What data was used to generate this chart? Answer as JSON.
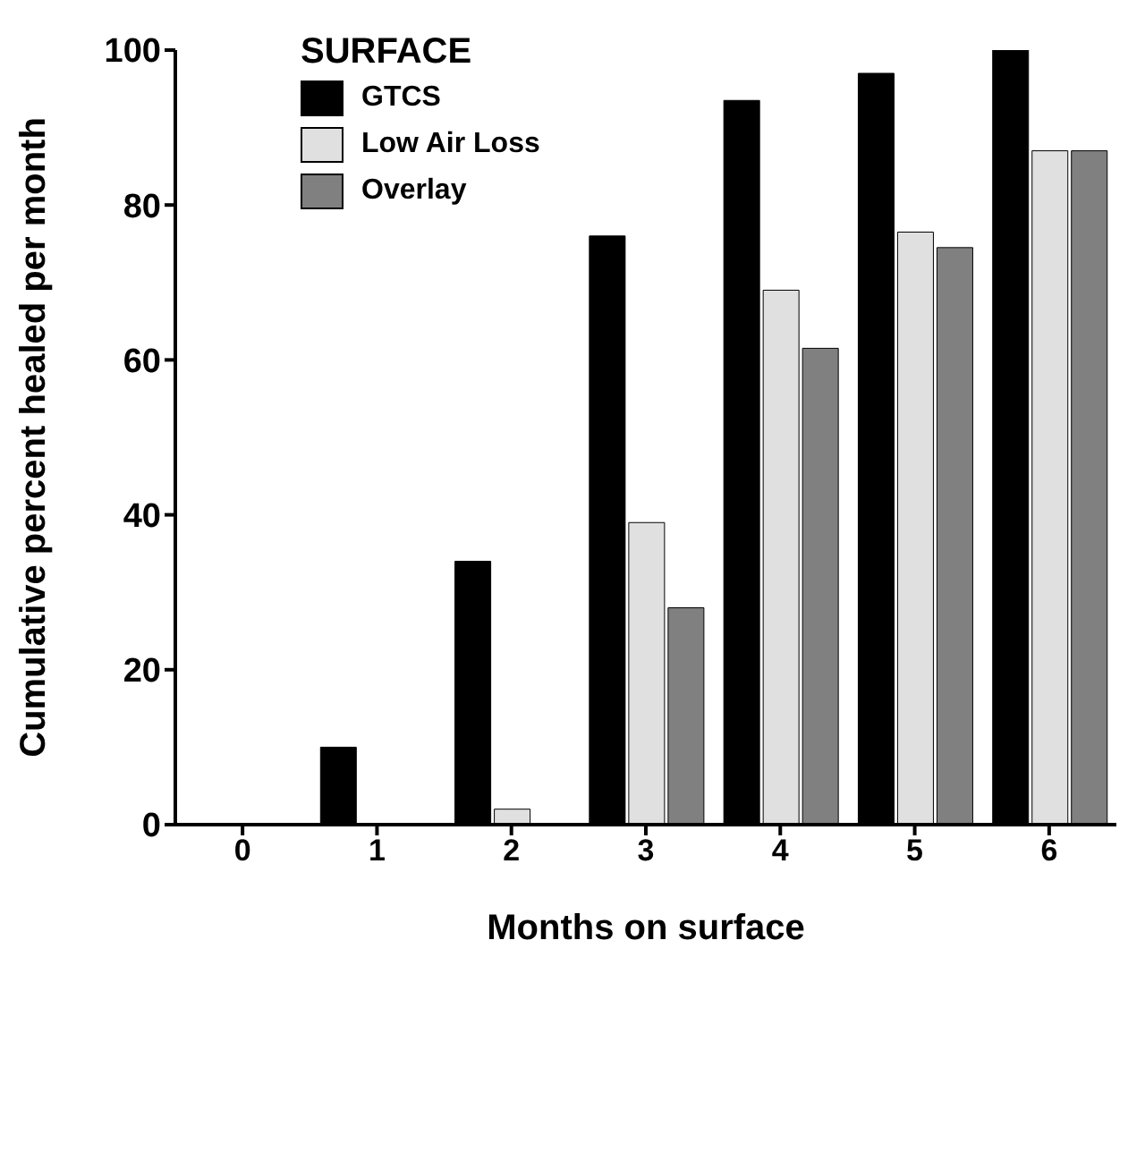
{
  "chart_data": {
    "type": "bar",
    "xlabel": "Months on surface",
    "ylabel": "Cumulative percent healed per month",
    "legend_title": "SURFACE",
    "categories": [
      "0",
      "1",
      "2",
      "3",
      "4",
      "5",
      "6"
    ],
    "series": [
      {
        "name": "GTCS",
        "color": "#000000",
        "values": [
          null,
          10,
          34,
          76,
          93.5,
          97,
          100
        ]
      },
      {
        "name": "Low Air Loss",
        "color": "#e0e0e0",
        "values": [
          null,
          0,
          2,
          39,
          69,
          76.5,
          87
        ]
      },
      {
        "name": "Overlay",
        "color": "#808080",
        "values": [
          null,
          0,
          0,
          28,
          61.5,
          74.5,
          87
        ]
      }
    ],
    "ylim": [
      0,
      100
    ],
    "yticks": [
      0,
      20,
      40,
      60,
      80,
      100
    ],
    "legend": "top left"
  }
}
